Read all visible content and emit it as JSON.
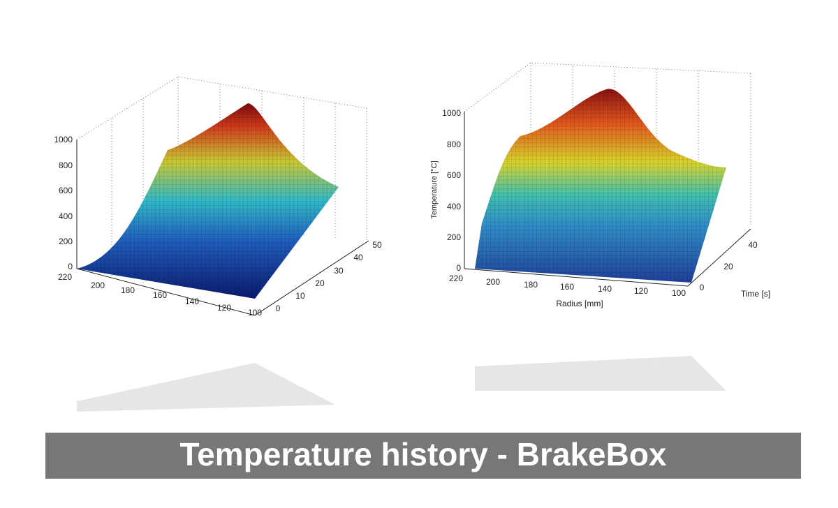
{
  "left_plot": {
    "z_ticks": [
      1000,
      800,
      600,
      400,
      200,
      0
    ],
    "radius_ticks": [
      220,
      200,
      180,
      160,
      140,
      120,
      100
    ],
    "time_ticks": [
      0,
      10,
      20,
      30,
      40,
      50
    ]
  },
  "right_plot": {
    "z_label": "Temperature [°C]",
    "x_label": "Radius [mm]",
    "y_label": "Time [s]",
    "z_ticks": [
      1000,
      800,
      600,
      400,
      200,
      0
    ],
    "radius_ticks": [
      220,
      200,
      180,
      160,
      140,
      120,
      100
    ],
    "time_ticks": [
      0,
      20,
      40
    ]
  },
  "banner": {
    "title": "Temperature history - BrakeBox"
  }
}
